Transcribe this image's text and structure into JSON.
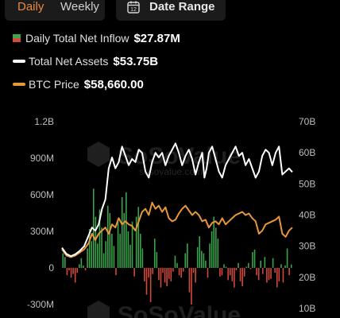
{
  "tabs": {
    "daily": "Daily",
    "weekly": "Weekly",
    "active": "Daily"
  },
  "date_range": {
    "label": "Date Range",
    "icon": "calendar-icon",
    "icon_number": "12"
  },
  "legend": [
    {
      "label": "Daily Total Net Inflow",
      "value": "$27.87M",
      "icon": "bar-swatch-icon"
    },
    {
      "label": "Total Net Assets",
      "value": "$53.75B",
      "color": "#ffffff"
    },
    {
      "label": "BTC Price",
      "value": "$58,660.00",
      "color": "#e8963c"
    }
  ],
  "watermark": {
    "brand": "SoSoValue",
    "url": "sosovalue.com"
  },
  "colors": {
    "positive": "#3aa54a",
    "negative": "#d34a3a",
    "assets": "#ffffff",
    "price": "#e8963c"
  },
  "chart_data": {
    "type": "bar+line",
    "left_axis": {
      "ticks": [
        "1.2B",
        "900M",
        "600M",
        "300M",
        "0",
        "-300M"
      ],
      "range": [
        -300000000,
        1200000000
      ]
    },
    "right_axis": {
      "ticks": [
        "70B",
        "60B",
        "50B",
        "40B",
        "30B",
        "20B",
        "10B"
      ],
      "range": [
        10000000000,
        70000000000
      ]
    },
    "series": [
      {
        "name": "Daily Total Net Inflow",
        "type": "bar",
        "axis": "left",
        "values": [
          120000000,
          90000000,
          -60000000,
          -20000000,
          -80000000,
          -50000000,
          -120000000,
          -40000000,
          30000000,
          80000000,
          20000000,
          -20000000,
          160000000,
          320000000,
          220000000,
          650000000,
          420000000,
          200000000,
          480000000,
          330000000,
          120000000,
          220000000,
          510000000,
          450000000,
          280000000,
          180000000,
          -60000000,
          380000000,
          280000000,
          580000000,
          450000000,
          620000000,
          300000000,
          190000000,
          380000000,
          -70000000,
          420000000,
          500000000,
          280000000,
          160000000,
          -110000000,
          -220000000,
          -80000000,
          -280000000,
          -50000000,
          240000000,
          130000000,
          -100000000,
          -160000000,
          -40000000,
          -120000000,
          -150000000,
          -90000000,
          -110000000,
          -30000000,
          100000000,
          40000000,
          -60000000,
          -80000000,
          -30000000,
          120000000,
          200000000,
          -200000000,
          -300000000,
          -40000000,
          -120000000,
          170000000,
          260000000,
          140000000,
          120000000,
          60000000,
          -80000000,
          200000000,
          300000000,
          420000000,
          330000000,
          240000000,
          -70000000,
          -60000000,
          30000000,
          10000000,
          -100000000,
          -60000000,
          -110000000,
          -160000000,
          -20000000,
          40000000,
          -110000000,
          -150000000,
          -70000000,
          10000000,
          40000000,
          -10000000,
          130000000,
          150000000,
          -60000000,
          -100000000,
          60000000,
          -50000000,
          90000000,
          -120000000,
          -100000000,
          -90000000,
          80000000,
          -40000000,
          -160000000,
          -110000000,
          30000000,
          -120000000,
          20000000,
          160000000,
          -60000000,
          27870000
        ]
      },
      {
        "name": "Total Net Assets",
        "axis": "right",
        "type": "line",
        "points": [
          [
            0,
            29.5
          ],
          [
            4,
            27.5
          ],
          [
            8,
            26.8
          ],
          [
            12,
            27.4
          ],
          [
            16,
            28.5
          ],
          [
            20,
            30
          ],
          [
            24,
            33.5
          ],
          [
            27,
            36
          ],
          [
            30,
            35
          ],
          [
            33,
            37
          ],
          [
            36,
            42
          ],
          [
            39,
            45
          ],
          [
            42,
            55
          ],
          [
            45,
            58.5
          ],
          [
            48,
            55
          ],
          [
            51,
            57
          ],
          [
            54,
            62
          ],
          [
            57,
            59
          ],
          [
            60,
            56
          ],
          [
            63,
            58
          ],
          [
            66,
            57
          ],
          [
            69,
            61
          ],
          [
            72,
            60
          ],
          [
            75,
            54
          ],
          [
            78,
            52
          ],
          [
            81,
            57
          ],
          [
            84,
            60
          ],
          [
            87,
            58.5
          ],
          [
            90,
            60
          ],
          [
            93,
            56
          ],
          [
            96,
            59
          ],
          [
            99,
            61
          ],
          [
            102,
            63
          ],
          [
            105,
            60
          ],
          [
            108,
            56
          ],
          [
            111,
            59
          ],
          [
            114,
            61
          ],
          [
            117,
            58
          ],
          [
            120,
            53
          ],
          [
            123,
            57
          ],
          [
            126,
            60
          ],
          [
            128,
            52
          ],
          [
            130,
            55
          ],
          [
            132,
            60
          ],
          [
            135,
            62
          ],
          [
            138,
            58
          ],
          [
            141,
            54
          ],
          [
            144,
            52
          ],
          [
            147,
            56
          ],
          [
            150,
            58
          ],
          [
            153,
            60
          ],
          [
            156,
            62
          ],
          [
            159,
            59
          ],
          [
            162,
            60
          ],
          [
            165,
            56
          ],
          [
            168,
            58
          ],
          [
            171,
            55
          ],
          [
            174,
            52
          ],
          [
            177,
            54
          ],
          [
            180,
            59
          ],
          [
            183,
            61
          ],
          [
            186,
            60
          ],
          [
            189,
            56
          ],
          [
            192,
            60
          ],
          [
            195,
            62
          ],
          [
            198,
            53
          ],
          [
            201,
            54
          ],
          [
            204,
            55
          ],
          [
            207,
            53.8
          ]
        ]
      },
      {
        "name": "BTC Price",
        "axis": "right",
        "type": "line",
        "points": [
          [
            0,
            29
          ],
          [
            4,
            27
          ],
          [
            8,
            26.5
          ],
          [
            12,
            27
          ],
          [
            16,
            28
          ],
          [
            20,
            29
          ],
          [
            24,
            31
          ],
          [
            27,
            34
          ],
          [
            30,
            32
          ],
          [
            33,
            34
          ],
          [
            36,
            35
          ],
          [
            39,
            36
          ],
          [
            42,
            34
          ],
          [
            45,
            37
          ],
          [
            48,
            36
          ],
          [
            51,
            39
          ],
          [
            54,
            37
          ],
          [
            57,
            38
          ],
          [
            60,
            37
          ],
          [
            63,
            36.5
          ],
          [
            66,
            35
          ],
          [
            69,
            38
          ],
          [
            72,
            41
          ],
          [
            75,
            42
          ],
          [
            78,
            40
          ],
          [
            81,
            44
          ],
          [
            84,
            42
          ],
          [
            87,
            43
          ],
          [
            90,
            41
          ],
          [
            93,
            42.5
          ],
          [
            96,
            39
          ],
          [
            99,
            38
          ],
          [
            102,
            38.5
          ],
          [
            105,
            40.5
          ],
          [
            108,
            42
          ],
          [
            111,
            43
          ],
          [
            114,
            41.5
          ],
          [
            117,
            40
          ],
          [
            120,
            41
          ],
          [
            123,
            40
          ],
          [
            126,
            38
          ],
          [
            129,
            38.5
          ],
          [
            132,
            36
          ],
          [
            135,
            37.5
          ],
          [
            138,
            38
          ],
          [
            141,
            37
          ],
          [
            144,
            39
          ],
          [
            147,
            37
          ],
          [
            150,
            38
          ],
          [
            153,
            39
          ],
          [
            156,
            40
          ],
          [
            159,
            40.5
          ],
          [
            162,
            41
          ],
          [
            165,
            40
          ],
          [
            168,
            40.5
          ],
          [
            171,
            39
          ],
          [
            174,
            38
          ],
          [
            177,
            34
          ],
          [
            180,
            35
          ],
          [
            183,
            37
          ],
          [
            186,
            37.5
          ],
          [
            189,
            38
          ],
          [
            192,
            38.5
          ],
          [
            195,
            39.5
          ],
          [
            198,
            34
          ],
          [
            201,
            33
          ],
          [
            204,
            35
          ],
          [
            207,
            36
          ]
        ]
      }
    ],
    "grid": false,
    "legend_position": "top-left"
  }
}
